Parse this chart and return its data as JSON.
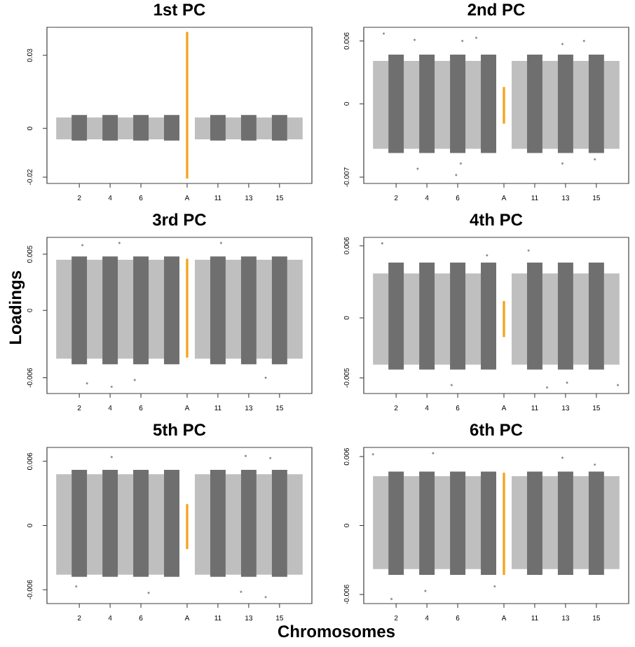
{
  "chart_data": [
    {
      "type": "bar",
      "title": "1st PC",
      "xlim": [
        -0.1,
        17.1
      ],
      "ylim": [
        -0.0226,
        0.0415
      ],
      "xticks": [
        {
          "value": 2,
          "label": "2"
        },
        {
          "value": 4,
          "label": "4"
        },
        {
          "value": 6,
          "label": "6"
        },
        {
          "value": 9,
          "label": "A"
        },
        {
          "value": 11,
          "label": "11"
        },
        {
          "value": 13,
          "label": "13"
        },
        {
          "value": 15,
          "label": "15"
        }
      ],
      "yticks": [
        -0.02,
        0,
        0.03
      ],
      "series": [
        {
          "color": "#bfbfbf",
          "x": [
            1,
            3,
            5,
            7,
            10,
            12,
            14,
            16
          ],
          "base": [
            -0.0045,
            -0.0045,
            -0.0045,
            -0.0045,
            -0.0045,
            -0.0045,
            -0.0045,
            -0.0045
          ],
          "values": [
            0.009,
            0.009,
            0.009,
            0.009,
            0.009,
            0.009,
            0.009,
            0.009
          ]
        },
        {
          "color": "#6f6f6f",
          "x": [
            2,
            4,
            6,
            8,
            11,
            13,
            15
          ],
          "base": [
            -0.005,
            -0.005,
            -0.005,
            -0.005,
            -0.005,
            -0.005,
            -0.005
          ],
          "values": [
            0.0105,
            0.0105,
            0.0105,
            0.0105,
            0.0105,
            0.0105,
            0.0105
          ]
        },
        {
          "color": "#f5a31a",
          "x": [
            9
          ],
          "base": [
            -0.0206
          ],
          "values": [
            0.0602
          ]
        }
      ]
    },
    {
      "type": "bar",
      "title": "2nd PC",
      "xlim": [
        -0.1,
        17.1
      ],
      "ylim": [
        -0.0076,
        0.0073
      ],
      "xticks": [
        {
          "value": 2,
          "label": "2"
        },
        {
          "value": 4,
          "label": "4"
        },
        {
          "value": 6,
          "label": "6"
        },
        {
          "value": 9,
          "label": "A"
        },
        {
          "value": 11,
          "label": "11"
        },
        {
          "value": 13,
          "label": "13"
        },
        {
          "value": 15,
          "label": "15"
        }
      ],
      "yticks": [
        -0.007,
        0,
        0.006
      ],
      "series": [
        {
          "color": "#bfbfbf",
          "x": [
            1,
            3,
            5,
            7,
            10,
            12,
            14,
            16
          ],
          "base": [
            -0.0043,
            -0.0043,
            -0.0043,
            -0.0043,
            -0.0043,
            -0.0043,
            -0.0043,
            -0.0043
          ],
          "values": [
            0.0084,
            0.0084,
            0.0084,
            0.0084,
            0.0084,
            0.0084,
            0.0084,
            0.0084
          ]
        },
        {
          "color": "#6f6f6f",
          "x": [
            2,
            4,
            6,
            8,
            11,
            13,
            15
          ],
          "base": [
            -0.0047,
            -0.0047,
            -0.0047,
            -0.0047,
            -0.0047,
            -0.0047,
            -0.0047
          ],
          "values": [
            0.0094,
            0.0094,
            0.0094,
            0.0094,
            0.0094,
            0.0094,
            0.0094
          ]
        },
        {
          "color": "#f5a31a",
          "x": [
            9
          ],
          "base": [
            -0.0019
          ],
          "values": [
            0.0035
          ]
        },
        {
          "type": "scatter",
          "color": "#8c8c8c",
          "marker": "circle",
          "x": [
            1.2,
            3.2,
            6.3,
            7.2,
            12.8,
            14.2,
            5.9,
            6.2,
            12.8,
            3.4,
            14.9
          ],
          "values": [
            0.0067,
            0.0061,
            0.006,
            0.0063,
            0.0057,
            0.006,
            -0.0068,
            -0.0057,
            -0.0057,
            -0.0062,
            -0.0053
          ]
        }
      ]
    },
    {
      "type": "bar",
      "title": "3rd PC",
      "ylabel": "Loadings",
      "xlim": [
        -0.1,
        17.1
      ],
      "ylim": [
        -0.0074,
        0.0065
      ],
      "xticks": [
        {
          "value": 2,
          "label": "2"
        },
        {
          "value": 4,
          "label": "4"
        },
        {
          "value": 6,
          "label": "6"
        },
        {
          "value": 9,
          "label": "A"
        },
        {
          "value": 11,
          "label": "11"
        },
        {
          "value": 13,
          "label": "13"
        },
        {
          "value": 15,
          "label": "15"
        }
      ],
      "yticks": [
        -0.006,
        0,
        0.005
      ],
      "series": [
        {
          "color": "#bfbfbf",
          "x": [
            1,
            3,
            5,
            7,
            10,
            12,
            14,
            16
          ],
          "base": [
            -0.0043,
            -0.0043,
            -0.0043,
            -0.0043,
            -0.0043,
            -0.0043,
            -0.0043,
            -0.0043
          ],
          "values": [
            0.0088,
            0.0088,
            0.0088,
            0.0088,
            0.0088,
            0.0088,
            0.0088,
            0.0088
          ]
        },
        {
          "color": "#6f6f6f",
          "x": [
            2,
            4,
            6,
            8,
            11,
            13,
            15
          ],
          "base": [
            -0.0048,
            -0.0048,
            -0.0048,
            -0.0048,
            -0.0048,
            -0.0048,
            -0.0048
          ],
          "values": [
            0.0096,
            0.0096,
            0.0096,
            0.0096,
            0.0096,
            0.0096,
            0.0096
          ]
        },
        {
          "color": "#f5a31a",
          "x": [
            9
          ],
          "base": [
            -0.0042
          ],
          "values": [
            0.0088
          ]
        },
        {
          "type": "scatter",
          "color": "#8c8c8c",
          "marker": "circle",
          "x": [
            2.2,
            4.6,
            11.2,
            4.1,
            2.5,
            5.6,
            14.1
          ],
          "values": [
            0.0058,
            0.006,
            0.006,
            -0.0068,
            -0.0065,
            -0.0062,
            -0.006
          ]
        }
      ]
    },
    {
      "type": "bar",
      "title": "4th PC",
      "xlim": [
        -0.1,
        17.1
      ],
      "ylim": [
        -0.0063,
        0.0067
      ],
      "xticks": [
        {
          "value": 2,
          "label": "2"
        },
        {
          "value": 4,
          "label": "4"
        },
        {
          "value": 6,
          "label": "6"
        },
        {
          "value": 9,
          "label": "A"
        },
        {
          "value": 11,
          "label": "11"
        },
        {
          "value": 13,
          "label": "13"
        },
        {
          "value": 15,
          "label": "15"
        }
      ],
      "yticks": [
        -0.005,
        0,
        0.006
      ],
      "series": [
        {
          "color": "#bfbfbf",
          "x": [
            1,
            3,
            5,
            7,
            10,
            12,
            14,
            16
          ],
          "base": [
            -0.0039,
            -0.0039,
            -0.0039,
            -0.0039,
            -0.0039,
            -0.0039,
            -0.0039,
            -0.0039
          ],
          "values": [
            0.0076,
            0.0076,
            0.0076,
            0.0076,
            0.0076,
            0.0076,
            0.0076,
            0.0076
          ]
        },
        {
          "color": "#6f6f6f",
          "x": [
            2,
            4,
            6,
            8,
            11,
            13,
            15
          ],
          "base": [
            -0.0043,
            -0.0043,
            -0.0043,
            -0.0043,
            -0.0043,
            -0.0043,
            -0.0043
          ],
          "values": [
            0.0089,
            0.0089,
            0.0089,
            0.0089,
            0.0089,
            0.0089,
            0.0089
          ]
        },
        {
          "color": "#f5a31a",
          "x": [
            9
          ],
          "base": [
            -0.0016
          ],
          "values": [
            0.003
          ]
        },
        {
          "type": "scatter",
          "color": "#8c8c8c",
          "marker": "circle",
          "x": [
            1.1,
            7.9,
            10.6,
            16.4,
            11.8,
            5.6,
            13.1
          ],
          "values": [
            0.0062,
            0.0052,
            0.0056,
            -0.0056,
            -0.0058,
            -0.0056,
            -0.0054
          ]
        }
      ]
    },
    {
      "type": "bar",
      "title": "5th PC",
      "xlabel": "Chromosomes",
      "xlim": [
        -0.1,
        17.1
      ],
      "ylim": [
        -0.0073,
        0.0073
      ],
      "xticks": [
        {
          "value": 2,
          "label": "2"
        },
        {
          "value": 4,
          "label": "4"
        },
        {
          "value": 6,
          "label": "6"
        },
        {
          "value": 9,
          "label": "A"
        },
        {
          "value": 11,
          "label": "11"
        },
        {
          "value": 13,
          "label": "13"
        },
        {
          "value": 15,
          "label": "15"
        }
      ],
      "yticks": [
        -0.006,
        0,
        0.006
      ],
      "series": [
        {
          "color": "#bfbfbf",
          "x": [
            1,
            3,
            5,
            7,
            10,
            12,
            14,
            16
          ],
          "base": [
            -0.0046,
            -0.0046,
            -0.0046,
            -0.0046,
            -0.0046,
            -0.0046,
            -0.0046,
            -0.0046
          ],
          "values": [
            0.0094,
            0.0094,
            0.0094,
            0.0094,
            0.0094,
            0.0094,
            0.0094,
            0.0094
          ]
        },
        {
          "color": "#6f6f6f",
          "x": [
            2,
            4,
            6,
            8,
            11,
            13,
            15
          ],
          "base": [
            -0.0048,
            -0.0048,
            -0.0048,
            -0.0048,
            -0.0048,
            -0.0048,
            -0.0048
          ],
          "values": [
            0.01,
            0.01,
            0.01,
            0.01,
            0.01,
            0.01,
            0.01
          ]
        },
        {
          "color": "#f5a31a",
          "x": [
            9
          ],
          "base": [
            -0.0022
          ],
          "values": [
            0.0042
          ]
        },
        {
          "type": "scatter",
          "color": "#8c8c8c",
          "marker": "circle",
          "x": [
            12.8,
            4.1,
            14.4,
            12.5,
            1.8,
            6.5,
            14.1
          ],
          "values": [
            0.0065,
            0.0064,
            0.0063,
            -0.0062,
            -0.0057,
            -0.0063,
            -0.0067
          ]
        }
      ]
    },
    {
      "type": "bar",
      "title": "6th PC",
      "xlim": [
        -0.1,
        17.1
      ],
      "ylim": [
        -0.0068,
        0.0068
      ],
      "xticks": [
        {
          "value": 2,
          "label": "2"
        },
        {
          "value": 4,
          "label": "4"
        },
        {
          "value": 6,
          "label": "6"
        },
        {
          "value": 9,
          "label": "A"
        },
        {
          "value": 11,
          "label": "11"
        },
        {
          "value": 13,
          "label": "13"
        },
        {
          "value": 15,
          "label": "15"
        }
      ],
      "yticks": [
        -0.006,
        0,
        0.006
      ],
      "series": [
        {
          "color": "#bfbfbf",
          "x": [
            1,
            3,
            5,
            7,
            10,
            12,
            14,
            16
          ],
          "base": [
            -0.0038,
            -0.0038,
            -0.0038,
            -0.0038,
            -0.0038,
            -0.0038,
            -0.0038,
            -0.0038
          ],
          "values": [
            0.0081,
            0.0081,
            0.0081,
            0.0081,
            0.0081,
            0.0081,
            0.0081,
            0.0081
          ]
        },
        {
          "color": "#6f6f6f",
          "x": [
            2,
            4,
            6,
            8,
            11,
            13,
            15
          ],
          "base": [
            -0.0043,
            -0.0043,
            -0.0043,
            -0.0043,
            -0.0043,
            -0.0043,
            -0.0043
          ],
          "values": [
            0.009,
            0.009,
            0.009,
            0.009,
            0.009,
            0.009,
            0.009
          ]
        },
        {
          "color": "#f5a31a",
          "x": [
            9
          ],
          "base": [
            -0.0043
          ],
          "values": [
            0.0089
          ]
        },
        {
          "type": "scatter",
          "color": "#8c8c8c",
          "marker": "circle",
          "x": [
            4.4,
            0.5,
            12.8,
            14.9,
            1.7,
            8.4,
            3.9
          ],
          "values": [
            0.0063,
            0.0062,
            0.0059,
            0.0053,
            -0.0064,
            -0.0053,
            -0.0057
          ]
        }
      ]
    }
  ]
}
